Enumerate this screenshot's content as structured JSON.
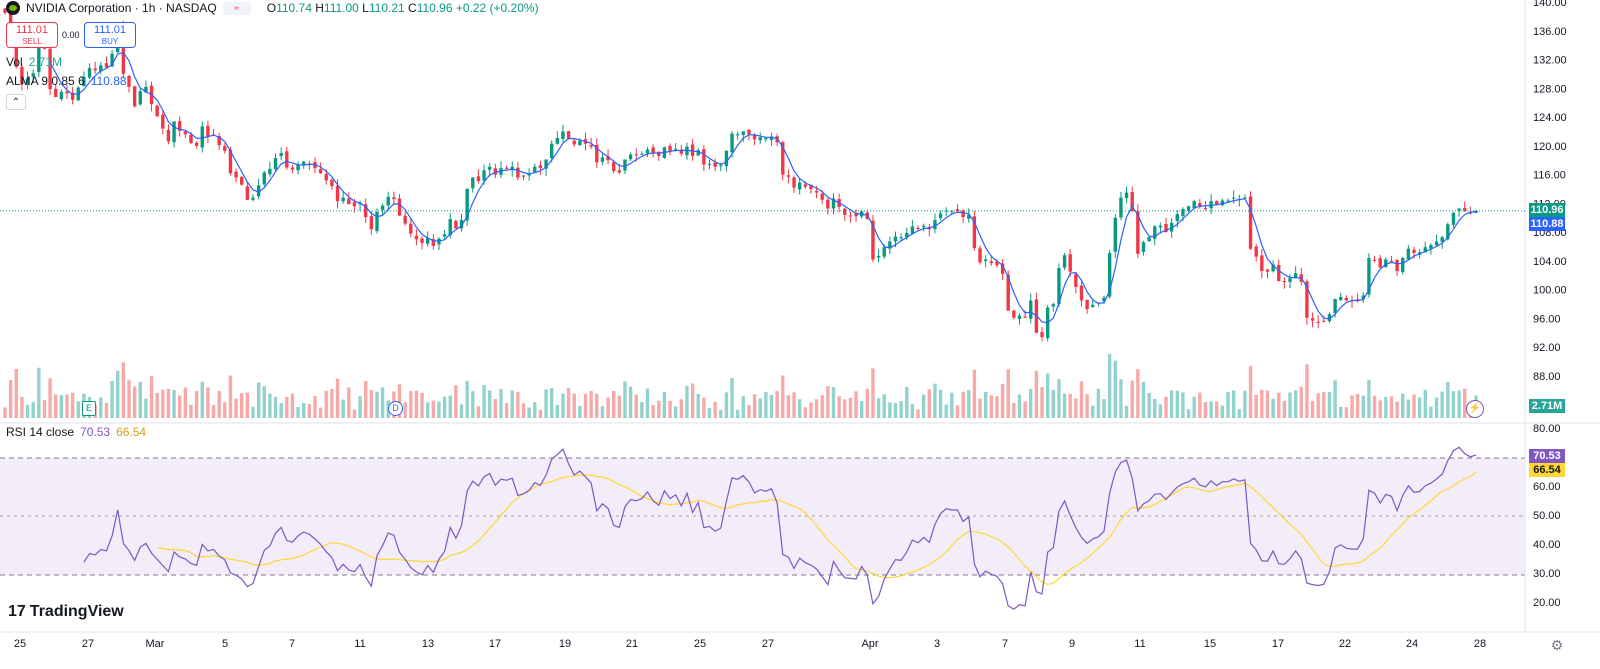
{
  "header": {
    "symbol_title": "NVIDIA Corporation · 1h · NASDAQ",
    "ohlc": {
      "o_label": "O",
      "o": "110.74",
      "h_label": "H",
      "h": "111.00",
      "l_label": "L",
      "l": "110.21",
      "c_label": "C",
      "c": "110.96",
      "change": "+0.22 (+0.20%)"
    },
    "sell": {
      "price": "111.01",
      "label": "SELL"
    },
    "spread": "0.00",
    "buy": {
      "price": "111.01",
      "label": "BUY"
    },
    "volume_legend": {
      "name": "Vol",
      "value": "2.71M"
    },
    "alma_legend": {
      "name": "ALMA 9 0.85 6",
      "value": "110.88"
    },
    "rsi_legend": {
      "name": "RSI 14 close",
      "rsi": "70.53",
      "ma": "66.54"
    },
    "logo_text": "TradingView"
  },
  "price_axis": {
    "ticks": [
      "140.00",
      "136.00",
      "132.00",
      "128.00",
      "124.00",
      "120.00",
      "116.00",
      "112.00",
      "108.00",
      "104.00",
      "100.00",
      "96.00",
      "92.00",
      "88.00"
    ],
    "last_price_tag": "110.96",
    "alma_tag": "110.88",
    "volume_tag": "2.71M"
  },
  "rsi_axis": {
    "ticks": [
      "80.00",
      "70.00",
      "60.00",
      "50.00",
      "40.00",
      "30.00",
      "20.00"
    ],
    "rsi_tag": "70.53",
    "ma_tag": "66.54"
  },
  "time_axis": {
    "labels": [
      "25",
      "27",
      "Mar",
      "5",
      "7",
      "11",
      "13",
      "17",
      "19",
      "21",
      "25",
      "27",
      "Apr",
      "3",
      "7",
      "9",
      "11",
      "15",
      "17",
      "22",
      "24",
      "28"
    ]
  },
  "markers": {
    "earnings": "E",
    "dividend": "D"
  },
  "colors": {
    "up": "#089981",
    "down": "#f23645",
    "alma": "#2962ff",
    "rsi": "#7e57c2",
    "rsi_ma": "#fdd835",
    "last_price": "#089981",
    "alma_tag": "#2962ff",
    "volume_tag": "#26a69a",
    "rsi_tag": "#7e57c2",
    "ma_tag": "#fdd835"
  },
  "chart_data": {
    "type": "candlestick",
    "timeframe": "1h",
    "ylim": [
      88,
      140
    ],
    "closes": [
      138.5,
      136.2,
      131.0,
      128.6,
      129.4,
      130.1,
      133.9,
      133.5,
      127.9,
      126.8,
      127.5,
      127.3,
      126.4,
      128.1,
      129.6,
      130.8,
      130.5,
      131.2,
      130.9,
      132.8,
      136.7,
      130.0,
      128.2,
      125.5,
      127.6,
      128.2,
      125.8,
      124.1,
      122.4,
      120.6,
      123.4,
      122.1,
      121.6,
      120.4,
      120.0,
      122.7,
      121.3,
      121.5,
      120.1,
      119.3,
      116.2,
      115.6,
      114.6,
      112.5,
      112.8,
      114.5,
      116.3,
      116.8,
      118.3,
      119.0,
      117.0,
      116.7,
      117.4,
      117.8,
      117.5,
      116.9,
      116.2,
      115.2,
      114.4,
      112.3,
      112.8,
      111.9,
      111.6,
      112.1,
      110.1,
      108.4,
      110.8,
      111.7,
      112.9,
      112.6,
      110.3,
      109.2,
      107.8,
      107.0,
      106.5,
      107.2,
      106.1,
      107.1,
      107.7,
      109.8,
      108.5,
      109.7,
      114.0,
      115.6,
      115.1,
      116.6,
      117.1,
      116.0,
      116.9,
      116.8,
      117.1,
      115.6,
      115.8,
      116.2,
      117.1,
      116.9,
      118.1,
      120.3,
      121.1,
      122.0,
      121.0,
      120.2,
      120.7,
      120.3,
      119.9,
      117.7,
      118.4,
      118.0,
      116.5,
      116.3,
      118.1,
      118.8,
      118.7,
      118.9,
      119.5,
      118.9,
      118.6,
      119.8,
      119.3,
      119.6,
      118.9,
      119.9,
      118.6,
      119.4,
      117.4,
      117.5,
      117.1,
      117.3,
      119.3,
      121.7,
      121.6,
      122.0,
      121.6,
      120.9,
      121.2,
      121.1,
      121.3,
      120.5,
      116.0,
      115.7,
      114.2,
      114.9,
      114.3,
      114.0,
      113.5,
      112.5,
      111.3,
      112.7,
      111.5,
      110.4,
      110.3,
      110.2,
      110.9,
      109.8,
      104.2,
      104.7,
      105.9,
      106.7,
      107.4,
      107.3,
      107.9,
      108.8,
      108.5,
      108.9,
      108.4,
      109.7,
      110.6,
      111.0,
      110.9,
      110.9,
      110.1,
      110.4,
      105.8,
      103.8,
      104.2,
      103.7,
      103.4,
      102.2,
      97.1,
      96.1,
      96.4,
      96.1,
      98.5,
      94.0,
      93.4,
      97.5,
      98.0,
      103.0,
      104.8,
      102.5,
      100.4,
      98.5,
      97.3,
      97.9,
      98.2,
      98.9,
      105.1,
      110.0,
      112.8,
      113.5,
      110.9,
      105.0,
      106.6,
      107.3,
      108.8,
      108.9,
      108.0,
      109.3,
      110.5,
      111.2,
      111.6,
      112.3,
      111.5,
      111.3,
      112.3,
      111.8,
      112.4,
      112.4,
      112.8,
      112.6,
      112.8,
      105.7,
      104.6,
      102.6,
      102.5,
      103.5,
      101.2,
      101.1,
      101.6,
      102.3,
      101.1,
      96.1,
      95.7,
      95.5,
      95.6,
      96.6,
      98.7,
      99.0,
      98.5,
      98.4,
      98.4,
      99.2,
      104.4,
      104.1,
      103.1,
      104.2,
      104.0,
      102.6,
      104.4,
      105.7,
      105.1,
      105.2,
      105.9,
      106.2,
      106.7,
      107.3,
      109.1,
      110.7,
      111.3,
      110.9,
      110.7,
      110.96
    ]
  }
}
